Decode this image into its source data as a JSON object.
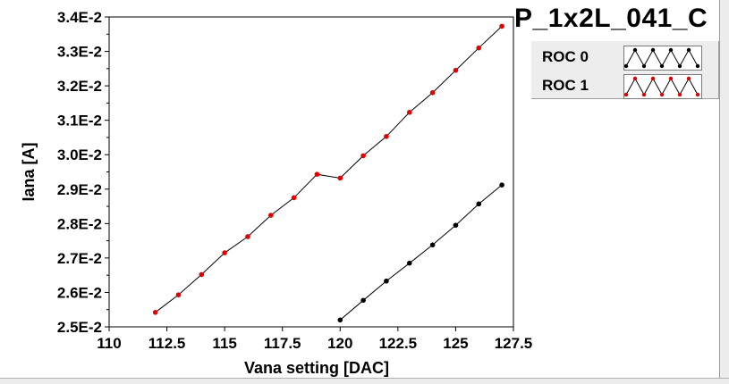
{
  "title": "P_1x2L_041_C",
  "legend": [
    {
      "label": "ROC 0",
      "color": "#000000"
    },
    {
      "label": "ROC 1",
      "color": "#e00000"
    }
  ],
  "chart_data": {
    "type": "line",
    "xlabel": "Vana setting [DAC]",
    "ylabel": "Iana [A]",
    "xlim": [
      110,
      127.5
    ],
    "ylim": [
      0.025,
      0.034
    ],
    "x_ticks": [
      110,
      112.5,
      115,
      117.5,
      120,
      122.5,
      125,
      127.5
    ],
    "x_tick_labels": [
      "110",
      "112.5",
      "115",
      "117.5",
      "120",
      "122.5",
      "125",
      "127.5"
    ],
    "y_ticks": [
      0.025,
      0.026,
      0.027,
      0.028,
      0.029,
      0.03,
      0.031,
      0.032,
      0.033,
      0.034
    ],
    "y_tick_labels": [
      "2.5E-2",
      "2.6E-2",
      "2.7E-2",
      "2.8E-2",
      "2.9E-2",
      "3.0E-2",
      "3.1E-2",
      "3.2E-2",
      "3.3E-2",
      "3.4E-2"
    ],
    "grid": true,
    "legend_position": "top-right",
    "series": [
      {
        "name": "ROC 0",
        "color": "#000000",
        "x": [
          120,
          121,
          122,
          123,
          124,
          125,
          126,
          127
        ],
        "y": [
          0.0252,
          0.02577,
          0.02633,
          0.02685,
          0.02738,
          0.02795,
          0.02857,
          0.02912
        ]
      },
      {
        "name": "ROC 1",
        "color": "#e00000",
        "x": [
          112,
          113,
          114,
          115,
          116,
          117,
          118,
          119,
          120,
          121,
          122,
          123,
          124,
          125,
          126,
          127
        ],
        "y": [
          0.02542,
          0.02593,
          0.02652,
          0.02715,
          0.02762,
          0.02824,
          0.02875,
          0.02943,
          0.02932,
          0.02997,
          0.03053,
          0.03123,
          0.0318,
          0.03245,
          0.0331,
          0.03373
        ]
      }
    ]
  }
}
